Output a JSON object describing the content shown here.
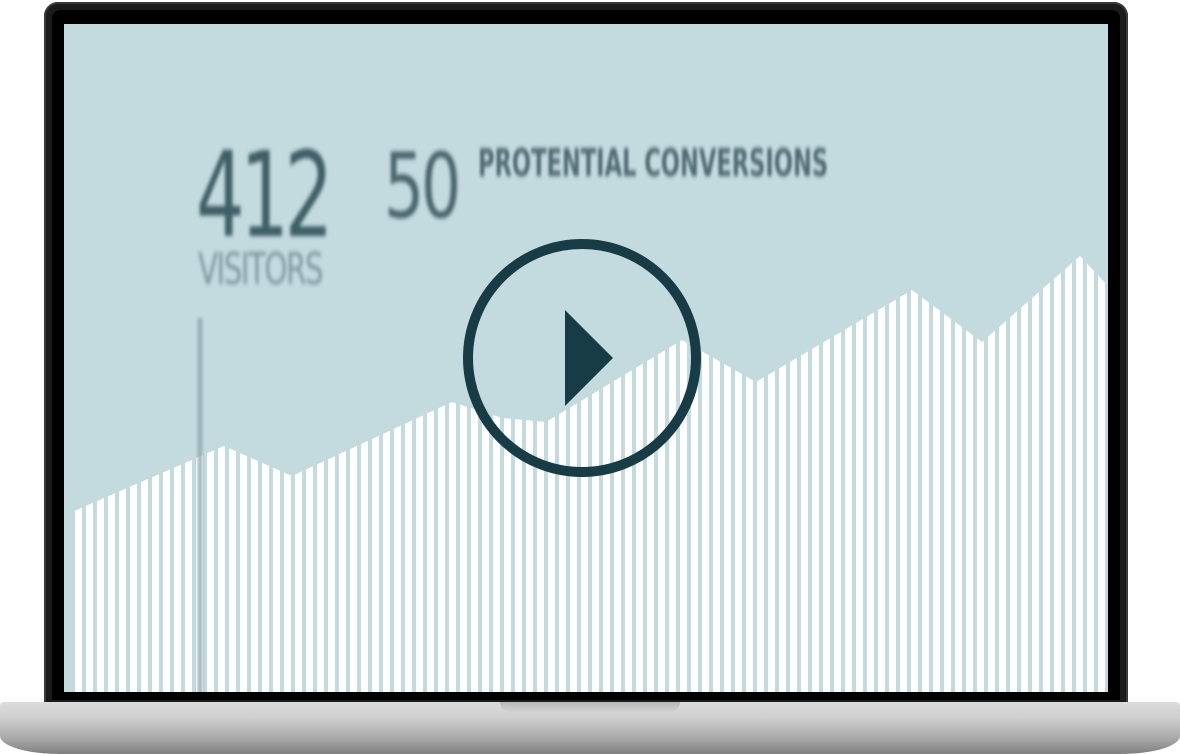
{
  "stats": {
    "visitors_value": "412",
    "visitors_label": "VISITORS",
    "conversions_value": "50",
    "conversions_label": "PROTENTIAL CONVERSIONS"
  },
  "video": {
    "play_icon": "play-icon"
  },
  "colors": {
    "screen_bg": "#c3dadf",
    "stripes": "#ffffff",
    "play_dark": "#173c46"
  }
}
